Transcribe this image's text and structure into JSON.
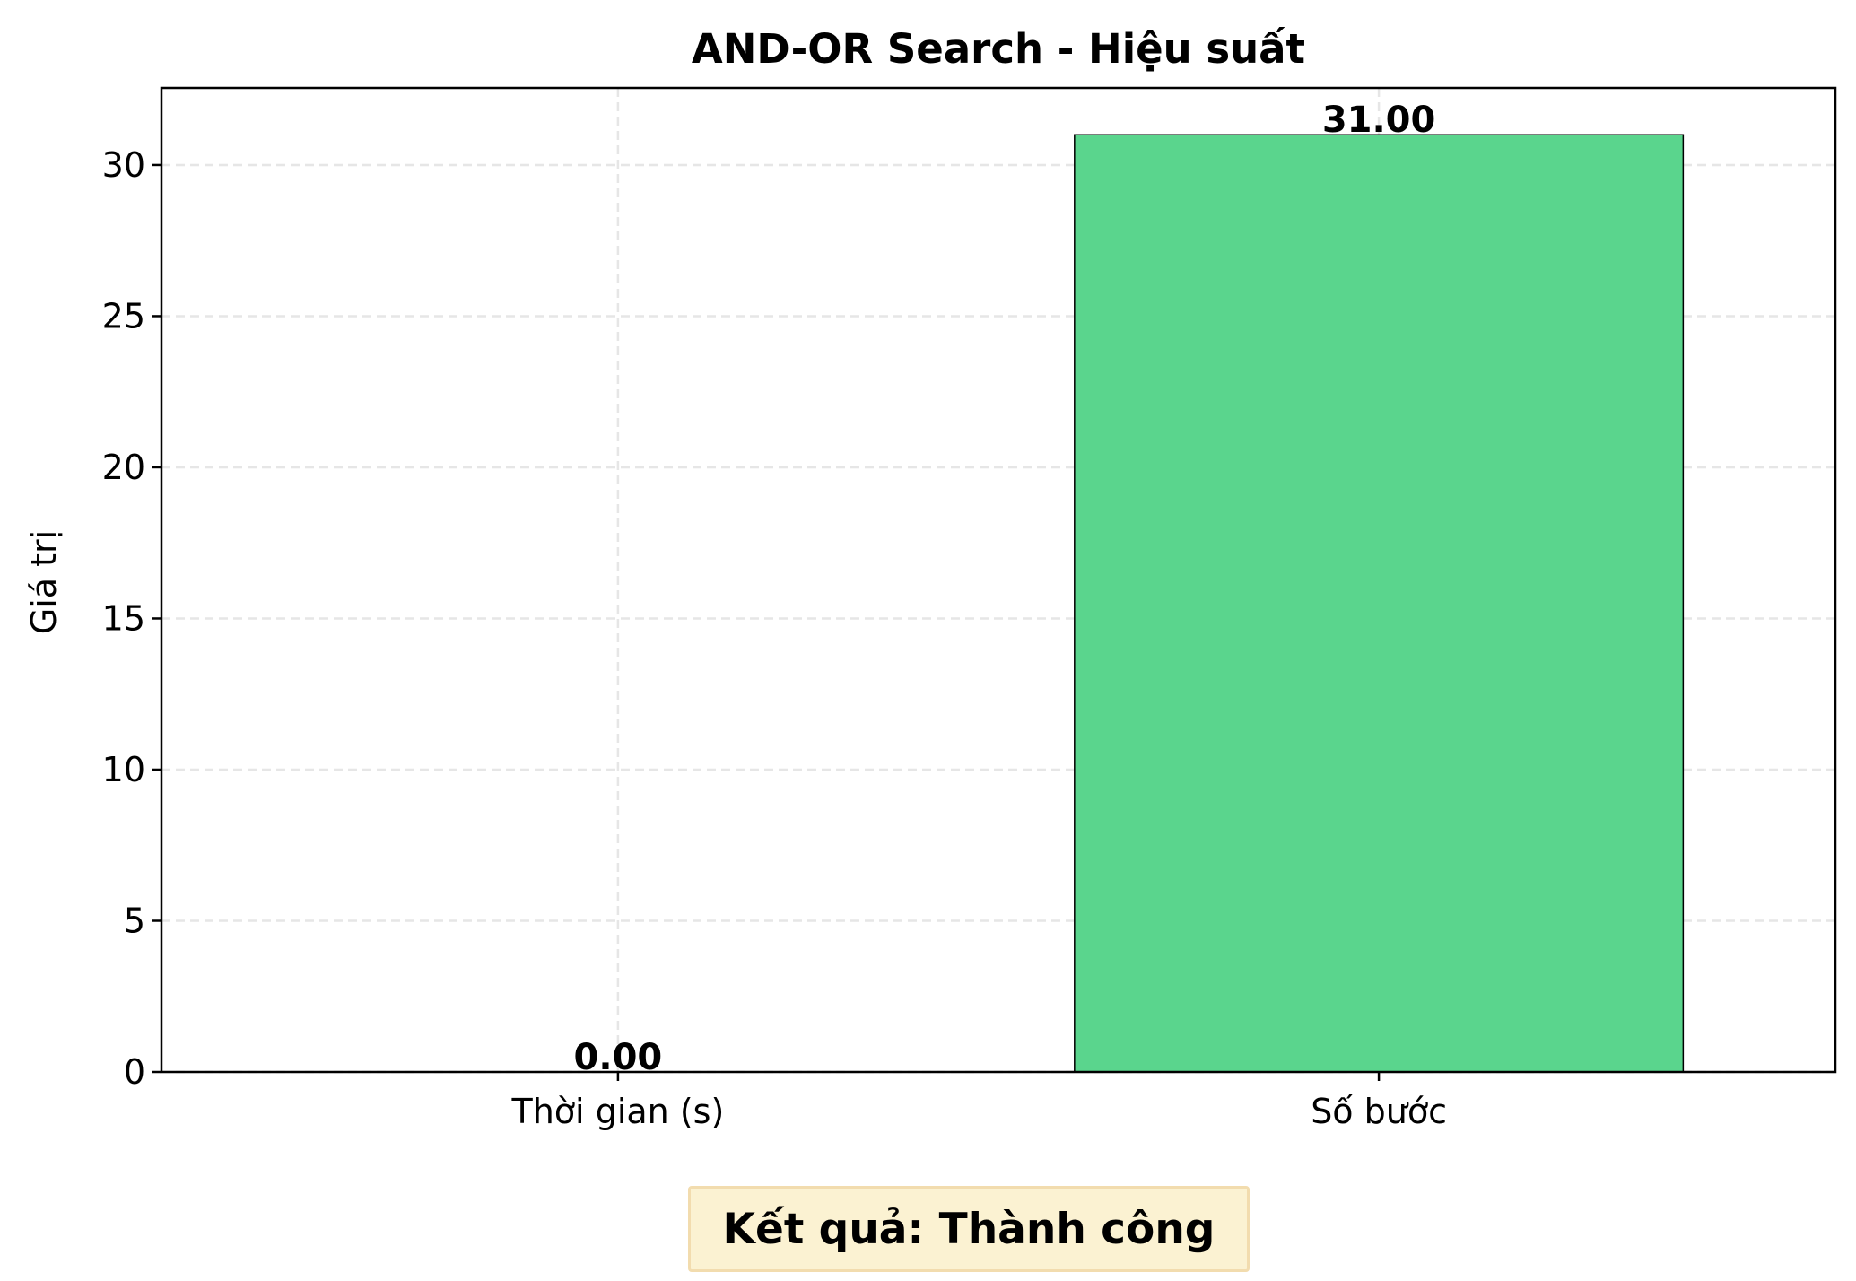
{
  "chart_data": {
    "type": "bar",
    "title": "AND-OR Search - Hiệu suất",
    "xlabel": "",
    "ylabel": "Giá trị",
    "categories": [
      "Thời gian (s)",
      "Số bước"
    ],
    "values": [
      0.0,
      31.0
    ],
    "value_labels": [
      "0.00",
      "31.00"
    ],
    "yticks": [
      0,
      5,
      10,
      15,
      20,
      25,
      30
    ],
    "ylim": [
      0,
      32.55
    ],
    "grid": true,
    "bar_colors": [
      "#5ad58d",
      "#5ad58d"
    ],
    "edge_color": "#000000"
  },
  "result_label": "Kết quả: Thành công",
  "colors": {
    "result_bg": "#fbf2d2",
    "result_border": "#f2dcae",
    "grid": "#e6e6e6"
  }
}
